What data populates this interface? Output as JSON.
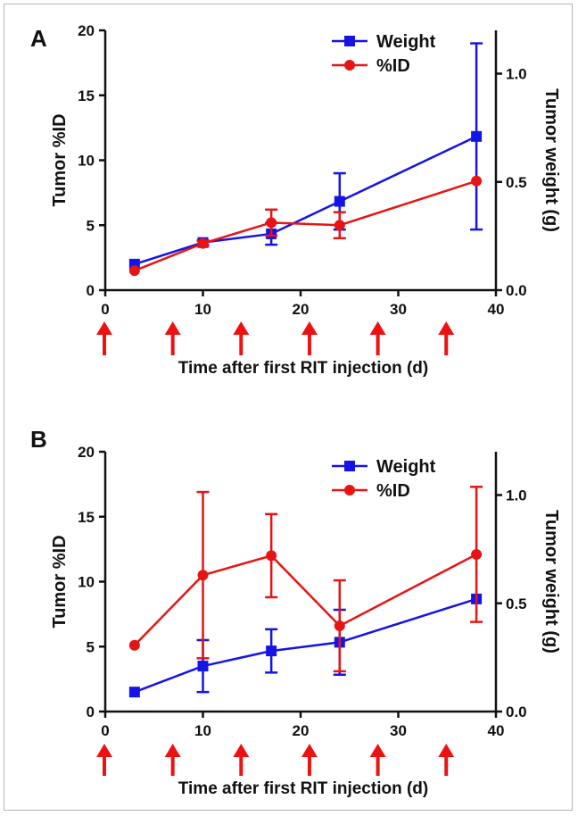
{
  "colors": {
    "weight": "#1414e6",
    "id": "#e61414",
    "arrow": "#ee1111",
    "axis": "#111111"
  },
  "chart_data": [
    {
      "panel": "A",
      "type": "line",
      "xlabel": "Time after first RIT injection (d)",
      "ylabel_left": "Tumor %ID",
      "ylabel_right": "Tumor weight (g)",
      "xlim": [
        0,
        40
      ],
      "ylim_left": [
        0,
        20
      ],
      "ylim_right": [
        0.0,
        1.2
      ],
      "xticks": [
        "0",
        "10",
        "20",
        "30",
        "40"
      ],
      "yticks_left": [
        "0",
        "5",
        "10",
        "15",
        "20"
      ],
      "yticks_right": [
        "0.0",
        "0.5",
        "1.0"
      ],
      "injection_days": [
        0,
        7,
        14,
        21,
        28,
        35
      ],
      "legend_position": "top-right",
      "series": [
        {
          "name": "Weight",
          "axis": "right",
          "marker": "square",
          "x": [
            3,
            10,
            17,
            24,
            38
          ],
          "y": [
            0.12,
            0.22,
            0.26,
            0.41,
            0.71
          ],
          "err": [
            0.0,
            0.01,
            0.05,
            0.13,
            0.43
          ]
        },
        {
          "name": "%ID",
          "axis": "left",
          "marker": "circle",
          "x": [
            3,
            10,
            17,
            24,
            38
          ],
          "y": [
            1.5,
            3.6,
            5.2,
            5.0,
            8.4
          ],
          "err": [
            0.0,
            0.2,
            1.0,
            1.0,
            0.0
          ]
        }
      ]
    },
    {
      "panel": "B",
      "type": "line",
      "xlabel": "Time after first RIT injection (d)",
      "ylabel_left": "Tumor %ID",
      "ylabel_right": "Tumor weight (g)",
      "xlim": [
        0,
        40
      ],
      "ylim_left": [
        0,
        20
      ],
      "ylim_right": [
        0.0,
        1.2
      ],
      "xticks": [
        "0",
        "10",
        "20",
        "30",
        "40"
      ],
      "yticks_left": [
        "0",
        "5",
        "10",
        "15",
        "20"
      ],
      "yticks_right": [
        "0.0",
        "0.5",
        "1.0"
      ],
      "injection_days": [
        0,
        7,
        14,
        21,
        28,
        35
      ],
      "legend_position": "top-right",
      "series": [
        {
          "name": "Weight",
          "axis": "right",
          "marker": "square",
          "x": [
            3,
            10,
            17,
            24,
            38
          ],
          "y": [
            0.09,
            0.21,
            0.28,
            0.32,
            0.52
          ],
          "err": [
            0.0,
            0.12,
            0.1,
            0.15,
            0.0
          ]
        },
        {
          "name": "%ID",
          "axis": "left",
          "marker": "circle",
          "x": [
            3,
            10,
            17,
            24,
            38
          ],
          "y": [
            5.1,
            10.5,
            12.0,
            6.6,
            12.1
          ],
          "err": [
            0.0,
            6.4,
            3.2,
            3.5,
            5.2
          ]
        }
      ]
    }
  ]
}
